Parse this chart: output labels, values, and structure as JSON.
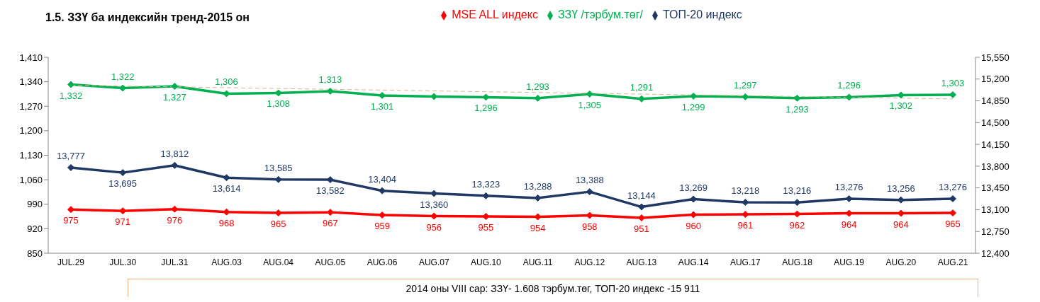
{
  "chart_data": {
    "type": "line",
    "title": "1.5. ЗЗҮ ба индексийн тренд-2015 он",
    "categories": [
      "JUL.29",
      "JUL.30",
      "JUL.31",
      "AUG.03",
      "AUG.04",
      "AUG.05",
      "AUG.06",
      "AUG.07",
      "AUG.10",
      "AUG.11",
      "AUG.12",
      "AUG.13",
      "AUG.14",
      "AUG.17",
      "AUG.18",
      "AUG.19",
      "AUG.20",
      "AUG.21"
    ],
    "series": [
      {
        "name": "MSE ALL индекс",
        "color": "#ff0000",
        "values": [
          975,
          971,
          976,
          968,
          965,
          967,
          959,
          956,
          955,
          954,
          958,
          951,
          960,
          961,
          962,
          964,
          964,
          965
        ],
        "value_labels": [
          "975",
          "971",
          "976",
          "968",
          "965",
          "967",
          "959",
          "956",
          "955",
          "954",
          "958",
          "951",
          "960",
          "961",
          "962",
          "964",
          "964",
          "965"
        ]
      },
      {
        "name": "ЗЗҮ /тэрбум.төг/",
        "color": "#00b050",
        "values": [
          1332,
          1322,
          1327,
          1306,
          1308,
          1313,
          1301,
          1298,
          1296,
          1293,
          1305,
          1291,
          1299,
          1297,
          1293,
          1296,
          1302,
          1303
        ],
        "value_labels": [
          "1,332",
          "1,322",
          "1,327",
          "1,306",
          "1,308",
          "1,313",
          "1,301",
          null,
          "1,296",
          "1,293",
          "1,305",
          "1,291",
          "1,299",
          "1,297",
          "1,293",
          "1,296",
          "1,302",
          "1,303"
        ]
      },
      {
        "name": "ТОП-20 индекс",
        "color": "#1f3864",
        "axis": "y2",
        "values": [
          13777,
          13695,
          13812,
          13614,
          13585,
          13582,
          13404,
          13360,
          13323,
          13288,
          13388,
          13144,
          13269,
          13218,
          13216,
          13276,
          13256,
          13276
        ],
        "value_labels": [
          "13,777",
          "13,695",
          "13,812",
          "13,614",
          "13,585",
          "13,582",
          "13,404",
          "13,360",
          "13,323",
          "13,288",
          "13,388",
          "13,144",
          "13,269",
          "13,218",
          "13,216",
          "13,276",
          "13,256",
          "13,276"
        ]
      },
      {
        "type": "line",
        "color": "#d8b890",
        "line_style": "dashed",
        "marker": "none",
        "values": [
          1330,
          null,
          null,
          null,
          null,
          null,
          null,
          null,
          null,
          null,
          null,
          null,
          null,
          null,
          null,
          null,
          null,
          1291
        ]
      }
    ],
    "ylim": [
      850,
      1410
    ],
    "yticks": [
      {
        "value": 850,
        "label": "850"
      },
      {
        "value": 920,
        "label": "920"
      },
      {
        "value": 990,
        "label": "990"
      },
      {
        "value": 1060,
        "label": "1,060"
      },
      {
        "value": 1130,
        "label": "1,130"
      },
      {
        "value": 1200,
        "label": "1,200"
      },
      {
        "value": 1270,
        "label": "1,270"
      },
      {
        "value": 1340,
        "label": "1,340"
      },
      {
        "value": 1410,
        "label": "1,410"
      }
    ],
    "y2lim": [
      12400,
      15550
    ],
    "y2ticks": [
      {
        "value": 12400,
        "label": "12,400"
      },
      {
        "value": 12750,
        "label": "12,750"
      },
      {
        "value": 13100,
        "label": "13,100"
      },
      {
        "value": 13450,
        "label": "13,450"
      },
      {
        "value": 13800,
        "label": "13,800"
      },
      {
        "value": 14150,
        "label": "14,150"
      },
      {
        "value": 14500,
        "label": "14,500"
      },
      {
        "value": 14850,
        "label": "14,850"
      },
      {
        "value": 15200,
        "label": "15,200"
      },
      {
        "value": 15550,
        "label": "15,550"
      }
    ],
    "legend": "top",
    "marker": "diamond",
    "line_style": "solid",
    "annotations": [
      "2014 оны VIII сар: ЗЗҮ- 1.608 тэрбум.төг, ТОП-20 индекс -15 911"
    ]
  }
}
